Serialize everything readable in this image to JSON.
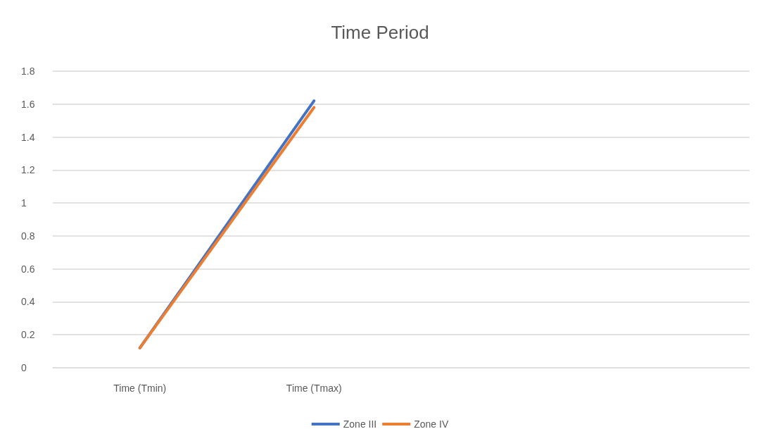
{
  "chart_data": {
    "type": "line",
    "title": "Time Period",
    "categories": [
      "Time (Tmin)",
      "Time (Tmax)",
      null,
      null
    ],
    "series": [
      {
        "name": "Zone III",
        "color": "#4472c4",
        "values": [
          0.12,
          1.62,
          null,
          null
        ]
      },
      {
        "name": "Zone IV",
        "color": "#ed7d31",
        "values": [
          0.12,
          1.58,
          null,
          null
        ]
      }
    ],
    "ylim": [
      0,
      1.8
    ],
    "yticks": [
      0,
      0.2,
      0.4,
      0.6,
      0.8,
      1,
      1.2,
      1.4,
      1.6,
      1.8
    ],
    "grid": "y",
    "legend": "bottom",
    "marker": "none",
    "line_style": "solid"
  }
}
